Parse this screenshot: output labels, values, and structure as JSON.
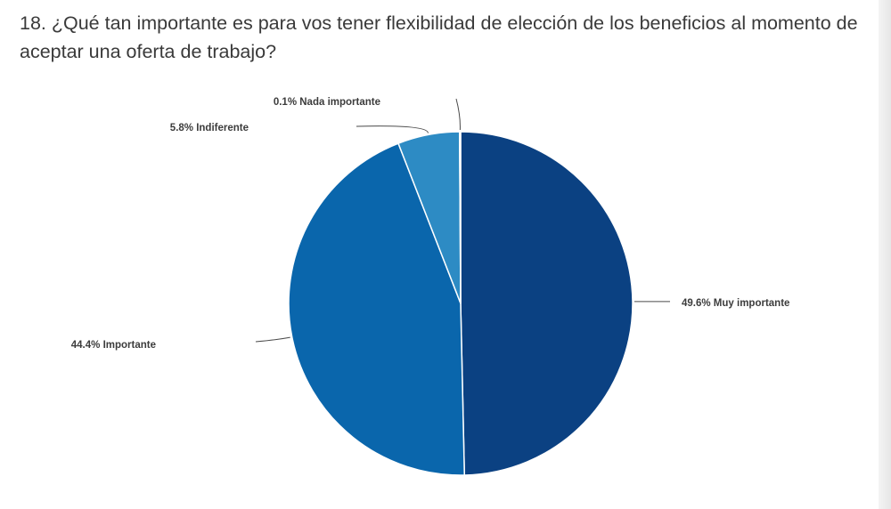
{
  "question": "18. ¿Qué tan importante es para vos tener flexibilidad de elección de los beneficios al momento de aceptar una oferta de trabajo?",
  "chart_data": {
    "type": "pie",
    "title": "18. ¿Qué tan importante es para vos tener flexibilidad de elección de los beneficios al momento de aceptar una oferta de trabajo?",
    "slices": [
      {
        "label": "Muy importante",
        "value": 49.6,
        "display": "49.6% Muy importante",
        "color": "#0b4182"
      },
      {
        "label": "Importante",
        "value": 44.4,
        "display": "44.4% Importante",
        "color": "#0a66ac"
      },
      {
        "label": "Indiferente",
        "value": 5.8,
        "display": "5.8% Indiferente",
        "color": "#2d8bc4"
      },
      {
        "label": "Nada importante",
        "value": 0.1,
        "display": "0.1% Nada importante",
        "color": "#5aaad8"
      }
    ],
    "start": "12 o'clock",
    "direction": "clockwise",
    "legend": "none (labels with leader lines)"
  }
}
